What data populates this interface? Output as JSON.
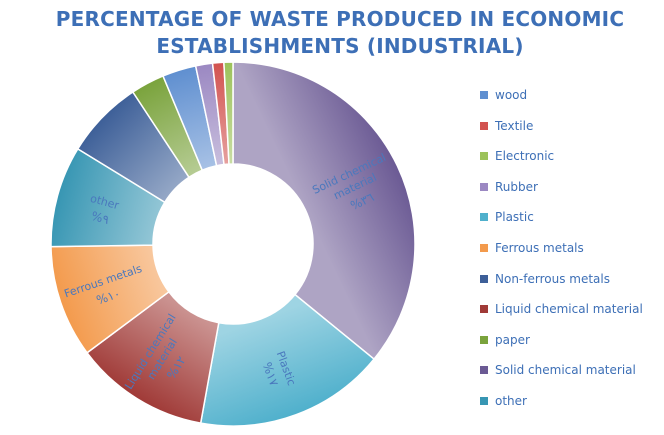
{
  "chart_data": {
    "type": "pie",
    "variant": "donut",
    "title_lines": [
      "PERCENTAGE OF WASTE  PRODUCED  IN ECONOMIC",
      "ESTABLISHMENTS (INDUSTRIAL)"
    ],
    "slices": [
      {
        "name": "Solid chemical material",
        "value": 36,
        "color": "#6b5a94",
        "label_lines": [
          "Solid chemical",
          "material"
        ],
        "pct_text": "%٣٦"
      },
      {
        "name": "Plastic",
        "value": 17,
        "color": "#4fb0cc",
        "label_lines": [
          "Plastic"
        ],
        "pct_text": "%١٧"
      },
      {
        "name": "Liquid chemical material",
        "value": 12,
        "color": "#a03a37",
        "label_lines": [
          "Liquid chemical",
          "material"
        ],
        "pct_text": "%١٢"
      },
      {
        "name": "Ferrous metals",
        "value": 10,
        "color": "#f39a4c",
        "label_lines": [
          "Ferrous metals"
        ],
        "pct_text": "%١٠"
      },
      {
        "name": "other",
        "value": 9,
        "color": "#3796b3",
        "label_lines": [
          "other"
        ],
        "pct_text": "%٩"
      },
      {
        "name": "Non-ferrous metals",
        "value": 7,
        "color": "#3d5f98",
        "label_lines": [],
        "pct_text": ""
      },
      {
        "name": "paper",
        "value": 3,
        "color": "#7aa33c",
        "label_lines": [],
        "pct_text": ""
      },
      {
        "name": "wood",
        "value": 3,
        "color": "#5f8fd0",
        "label_lines": [],
        "pct_text": ""
      },
      {
        "name": "Rubber",
        "value": 1.5,
        "color": "#9b88c2",
        "label_lines": [],
        "pct_text": ""
      },
      {
        "name": "Textile",
        "value": 1,
        "color": "#d2524f",
        "label_lines": [],
        "pct_text": ""
      },
      {
        "name": "Electronic",
        "value": 0.8,
        "color": "#9cc25a",
        "label_lines": [],
        "pct_text": ""
      }
    ],
    "legend_position": "right",
    "legend": [
      {
        "name": "wood",
        "color": "#5f8fd0"
      },
      {
        "name": "Textile",
        "color": "#d2524f"
      },
      {
        "name": "Electronic",
        "color": "#9cc25a"
      },
      {
        "name": "Rubber",
        "color": "#9b88c2"
      },
      {
        "name": "Plastic",
        "color": "#4fb0cc"
      },
      {
        "name": "Ferrous metals",
        "color": "#f39a4c"
      },
      {
        "name": "Non-ferrous metals",
        "color": "#3d5f98"
      },
      {
        "name": "Liquid chemical material",
        "color": "#a03a37"
      },
      {
        "name": "paper",
        "color": "#7aa33c"
      },
      {
        "name": "Solid chemical material",
        "color": "#6b5a94"
      },
      {
        "name": "other",
        "color": "#3796b3"
      }
    ]
  }
}
